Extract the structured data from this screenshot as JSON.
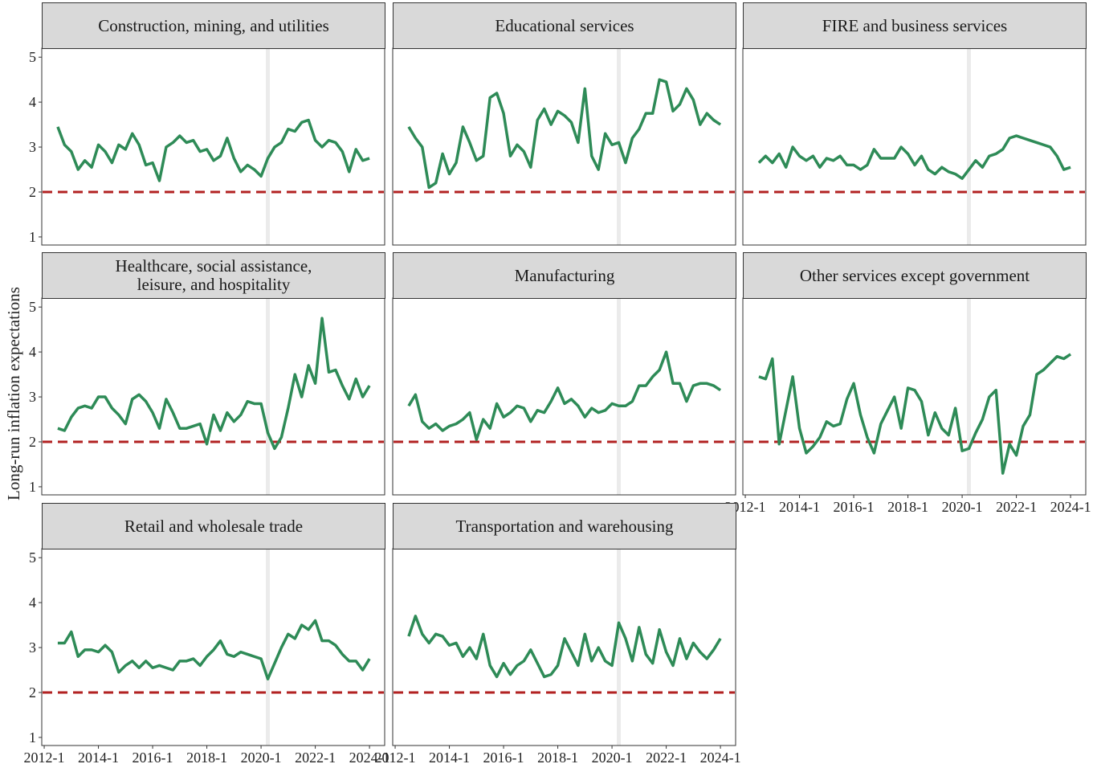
{
  "ylabel": "Long-run inflation expectations",
  "chart_data": [
    {
      "type": "line",
      "title": "Construction, mining, and utilities",
      "color": "#2e8b57",
      "hline": 2,
      "hline_color": "#b22222",
      "vline": 2020.25,
      "vline_color": "#ebebeb",
      "xlim": [
        2011.91,
        2024.56
      ],
      "ylim": [
        0.82,
        5.2
      ],
      "yticks": [
        1,
        2,
        3,
        4,
        5
      ],
      "x": [
        2012.5,
        2012.75,
        2013,
        2013.25,
        2013.5,
        2013.75,
        2014,
        2014.25,
        2014.5,
        2014.75,
        2015,
        2015.25,
        2015.5,
        2015.75,
        2016,
        2016.25,
        2016.5,
        2016.75,
        2017,
        2017.25,
        2017.5,
        2017.75,
        2018,
        2018.25,
        2018.5,
        2018.75,
        2019,
        2019.25,
        2019.5,
        2019.75,
        2020,
        2020.25,
        2020.5,
        2020.75,
        2021,
        2021.25,
        2021.5,
        2021.75,
        2022,
        2022.25,
        2022.5,
        2022.75,
        2023,
        2023.25,
        2023.5,
        2023.75,
        2024
      ],
      "values": [
        3.45,
        3.05,
        2.9,
        2.5,
        2.7,
        2.55,
        3.05,
        2.9,
        2.65,
        3.05,
        2.95,
        3.3,
        3.05,
        2.6,
        2.65,
        2.25,
        3.0,
        3.1,
        3.25,
        3.1,
        3.15,
        2.9,
        2.95,
        2.7,
        2.8,
        3.2,
        2.75,
        2.45,
        2.6,
        2.5,
        2.35,
        2.75,
        3.0,
        3.1,
        3.4,
        3.35,
        3.55,
        3.6,
        3.15,
        3.0,
        3.15,
        3.1,
        2.9,
        2.45,
        2.95,
        2.7,
        2.75
      ]
    },
    {
      "type": "line",
      "title": "Educational services",
      "color": "#2e8b57",
      "hline": 2,
      "hline_color": "#b22222",
      "vline": 2020.25,
      "vline_color": "#ebebeb",
      "xlim": [
        2011.91,
        2024.56
      ],
      "ylim": [
        0.82,
        5.2
      ],
      "x": [
        2012.5,
        2012.75,
        2013,
        2013.25,
        2013.5,
        2013.75,
        2014,
        2014.25,
        2014.5,
        2014.75,
        2015,
        2015.25,
        2015.5,
        2015.75,
        2016,
        2016.25,
        2016.5,
        2016.75,
        2017,
        2017.25,
        2017.5,
        2017.75,
        2018,
        2018.25,
        2018.5,
        2018.75,
        2019,
        2019.25,
        2019.5,
        2019.75,
        2020,
        2020.25,
        2020.5,
        2020.75,
        2021,
        2021.25,
        2021.5,
        2021.75,
        2022,
        2022.25,
        2022.5,
        2022.75,
        2023,
        2023.25,
        2023.5,
        2023.75,
        2024
      ],
      "values": [
        3.45,
        3.2,
        3.0,
        2.1,
        2.2,
        2.85,
        2.4,
        2.65,
        3.45,
        3.1,
        2.7,
        2.8,
        4.1,
        4.2,
        3.75,
        2.8,
        3.05,
        2.9,
        2.55,
        3.6,
        3.85,
        3.5,
        3.8,
        3.7,
        3.55,
        3.1,
        4.3,
        2.8,
        2.5,
        3.3,
        3.05,
        3.1,
        2.65,
        3.2,
        3.4,
        3.75,
        3.75,
        4.5,
        4.45,
        3.8,
        3.95,
        4.3,
        4.05,
        3.5,
        3.75,
        3.6,
        3.5
      ]
    },
    {
      "type": "line",
      "title": "FIRE and business services",
      "color": "#2e8b57",
      "hline": 2,
      "hline_color": "#b22222",
      "vline": 2020.25,
      "vline_color": "#ebebeb",
      "xlim": [
        2011.91,
        2024.56
      ],
      "ylim": [
        0.82,
        5.2
      ],
      "x": [
        2012.5,
        2012.75,
        2013,
        2013.25,
        2013.5,
        2013.75,
        2014,
        2014.25,
        2014.5,
        2014.75,
        2015,
        2015.25,
        2015.5,
        2015.75,
        2016,
        2016.25,
        2016.5,
        2016.75,
        2017,
        2017.25,
        2017.5,
        2017.75,
        2018,
        2018.25,
        2018.5,
        2018.75,
        2019,
        2019.25,
        2019.5,
        2019.75,
        2020,
        2020.25,
        2020.5,
        2020.75,
        2021,
        2021.25,
        2021.5,
        2021.75,
        2022,
        2022.25,
        2022.5,
        2022.75,
        2023,
        2023.25,
        2023.5,
        2023.75,
        2024
      ],
      "values": [
        2.65,
        2.8,
        2.65,
        2.85,
        2.55,
        3.0,
        2.8,
        2.7,
        2.8,
        2.55,
        2.75,
        2.7,
        2.8,
        2.6,
        2.6,
        2.5,
        2.6,
        2.95,
        2.75,
        2.75,
        2.75,
        3.0,
        2.85,
        2.6,
        2.8,
        2.5,
        2.4,
        2.55,
        2.45,
        2.4,
        2.3,
        2.5,
        2.7,
        2.55,
        2.8,
        2.85,
        2.95,
        3.2,
        3.25,
        3.2,
        3.15,
        3.1,
        3.05,
        3.0,
        2.8,
        2.5,
        2.55
      ]
    },
    {
      "type": "line",
      "title": "Healthcare, social assistance,\nleisure, and hospitality",
      "color": "#2e8b57",
      "hline": 2,
      "hline_color": "#b22222",
      "vline": 2020.25,
      "vline_color": "#ebebeb",
      "xlim": [
        2011.91,
        2024.56
      ],
      "ylim": [
        0.82,
        5.2
      ],
      "yticks": [
        1,
        2,
        3,
        4,
        5
      ],
      "x": [
        2012.5,
        2012.75,
        2013,
        2013.25,
        2013.5,
        2013.75,
        2014,
        2014.25,
        2014.5,
        2014.75,
        2015,
        2015.25,
        2015.5,
        2015.75,
        2016,
        2016.25,
        2016.5,
        2016.75,
        2017,
        2017.25,
        2017.5,
        2017.75,
        2018,
        2018.25,
        2018.5,
        2018.75,
        2019,
        2019.25,
        2019.5,
        2019.75,
        2020,
        2020.25,
        2020.5,
        2020.75,
        2021,
        2021.25,
        2021.5,
        2021.75,
        2022,
        2022.25,
        2022.5,
        2022.75,
        2023,
        2023.25,
        2023.5,
        2023.75,
        2024
      ],
      "values": [
        2.3,
        2.25,
        2.55,
        2.75,
        2.8,
        2.75,
        3.0,
        3.0,
        2.75,
        2.6,
        2.4,
        2.95,
        3.05,
        2.9,
        2.65,
        2.3,
        2.95,
        2.65,
        2.3,
        2.3,
        2.35,
        2.4,
        1.95,
        2.6,
        2.25,
        2.65,
        2.45,
        2.6,
        2.9,
        2.85,
        2.85,
        2.2,
        1.85,
        2.1,
        2.75,
        3.5,
        3.0,
        3.7,
        3.3,
        4.75,
        3.55,
        3.6,
        3.25,
        2.95,
        3.4,
        3.0,
        3.25
      ]
    },
    {
      "type": "line",
      "title": "Manufacturing",
      "color": "#2e8b57",
      "hline": 2,
      "hline_color": "#b22222",
      "vline": 2020.25,
      "vline_color": "#ebebeb",
      "xlim": [
        2011.91,
        2024.56
      ],
      "ylim": [
        0.82,
        5.2
      ],
      "x": [
        2012.5,
        2012.75,
        2013,
        2013.25,
        2013.5,
        2013.75,
        2014,
        2014.25,
        2014.5,
        2014.75,
        2015,
        2015.25,
        2015.5,
        2015.75,
        2016,
        2016.25,
        2016.5,
        2016.75,
        2017,
        2017.25,
        2017.5,
        2017.75,
        2018,
        2018.25,
        2018.5,
        2018.75,
        2019,
        2019.25,
        2019.5,
        2019.75,
        2020,
        2020.25,
        2020.5,
        2020.75,
        2021,
        2021.25,
        2021.5,
        2021.75,
        2022,
        2022.25,
        2022.5,
        2022.75,
        2023,
        2023.25,
        2023.5,
        2023.75,
        2024
      ],
      "values": [
        2.8,
        3.05,
        2.45,
        2.3,
        2.4,
        2.25,
        2.35,
        2.4,
        2.5,
        2.65,
        2.05,
        2.5,
        2.3,
        2.85,
        2.55,
        2.65,
        2.8,
        2.75,
        2.45,
        2.7,
        2.65,
        2.9,
        3.2,
        2.85,
        2.95,
        2.8,
        2.55,
        2.75,
        2.65,
        2.7,
        2.85,
        2.8,
        2.8,
        2.9,
        3.25,
        3.25,
        3.45,
        3.6,
        4.0,
        3.3,
        3.3,
        2.9,
        3.25,
        3.3,
        3.3,
        3.25,
        3.15
      ]
    },
    {
      "type": "line",
      "title": "Other services except government",
      "color": "#2e8b57",
      "hline": 2,
      "hline_color": "#b22222",
      "vline": 2020.25,
      "vline_color": "#ebebeb",
      "xlim": [
        2011.91,
        2024.56
      ],
      "ylim": [
        0.82,
        5.2
      ],
      "xticks": [
        {
          "value": 2012,
          "label": "2012-1"
        },
        {
          "value": 2014,
          "label": "2014-1"
        },
        {
          "value": 2016,
          "label": "2016-1"
        },
        {
          "value": 2018,
          "label": "2018-1"
        },
        {
          "value": 2020,
          "label": "2020-1"
        },
        {
          "value": 2022,
          "label": "2022-1"
        },
        {
          "value": 2024,
          "label": "2024-1"
        }
      ],
      "x": [
        2012.5,
        2012.75,
        2013,
        2013.25,
        2013.5,
        2013.75,
        2014,
        2014.25,
        2014.5,
        2014.75,
        2015,
        2015.25,
        2015.5,
        2015.75,
        2016,
        2016.25,
        2016.5,
        2016.75,
        2017,
        2017.25,
        2017.5,
        2017.75,
        2018,
        2018.25,
        2018.5,
        2018.75,
        2019,
        2019.25,
        2019.5,
        2019.75,
        2020,
        2020.25,
        2020.5,
        2020.75,
        2021,
        2021.25,
        2021.5,
        2021.75,
        2022,
        2022.25,
        2022.5,
        2022.75,
        2023,
        2023.25,
        2023.5,
        2023.75,
        2024
      ],
      "values": [
        3.45,
        3.4,
        3.85,
        1.95,
        2.7,
        3.45,
        2.3,
        1.75,
        1.9,
        2.1,
        2.45,
        2.35,
        2.4,
        2.95,
        3.3,
        2.6,
        2.1,
        1.75,
        2.4,
        2.7,
        3.0,
        2.3,
        3.2,
        3.15,
        2.9,
        2.15,
        2.65,
        2.3,
        2.15,
        2.75,
        1.8,
        1.85,
        2.2,
        2.5,
        3.0,
        3.15,
        1.3,
        1.95,
        1.7,
        2.35,
        2.6,
        3.5,
        3.6,
        3.75,
        3.9,
        3.85,
        3.95
      ]
    },
    {
      "type": "line",
      "title": "Retail and wholesale trade",
      "color": "#2e8b57",
      "hline": 2,
      "hline_color": "#b22222",
      "vline": 2020.25,
      "vline_color": "#ebebeb",
      "xlim": [
        2011.91,
        2024.56
      ],
      "ylim": [
        0.82,
        5.2
      ],
      "yticks": [
        1,
        2,
        3,
        4,
        5
      ],
      "xticks": [
        {
          "value": 2012,
          "label": "2012-1"
        },
        {
          "value": 2014,
          "label": "2014-1"
        },
        {
          "value": 2016,
          "label": "2016-1"
        },
        {
          "value": 2018,
          "label": "2018-1"
        },
        {
          "value": 2020,
          "label": "2020-1"
        },
        {
          "value": 2022,
          "label": "2022-1"
        },
        {
          "value": 2024,
          "label": "2024-1"
        }
      ],
      "x": [
        2012.5,
        2012.75,
        2013,
        2013.25,
        2013.5,
        2013.75,
        2014,
        2014.25,
        2014.5,
        2014.75,
        2015,
        2015.25,
        2015.5,
        2015.75,
        2016,
        2016.25,
        2016.5,
        2016.75,
        2017,
        2017.25,
        2017.5,
        2017.75,
        2018,
        2018.25,
        2018.5,
        2018.75,
        2019,
        2019.25,
        2019.5,
        2019.75,
        2020,
        2020.25,
        2020.5,
        2020.75,
        2021,
        2021.25,
        2021.5,
        2021.75,
        2022,
        2022.25,
        2022.5,
        2022.75,
        2023,
        2023.25,
        2023.5,
        2023.75,
        2024
      ],
      "values": [
        3.1,
        3.1,
        3.35,
        2.8,
        2.95,
        2.95,
        2.9,
        3.05,
        2.9,
        2.45,
        2.6,
        2.7,
        2.55,
        2.7,
        2.55,
        2.6,
        2.55,
        2.5,
        2.7,
        2.7,
        2.75,
        2.6,
        2.8,
        2.95,
        3.15,
        2.85,
        2.8,
        2.9,
        2.85,
        2.8,
        2.75,
        2.3,
        2.65,
        3.0,
        3.3,
        3.2,
        3.5,
        3.4,
        3.6,
        3.15,
        3.15,
        3.05,
        2.85,
        2.7,
        2.7,
        2.5,
        2.75
      ]
    },
    {
      "type": "line",
      "title": "Transportation and warehousing",
      "color": "#2e8b57",
      "hline": 2,
      "hline_color": "#b22222",
      "vline": 2020.25,
      "vline_color": "#ebebeb",
      "xlim": [
        2011.91,
        2024.56
      ],
      "ylim": [
        0.82,
        5.2
      ],
      "xticks": [
        {
          "value": 2012,
          "label": "2012-1"
        },
        {
          "value": 2014,
          "label": "2014-1"
        },
        {
          "value": 2016,
          "label": "2016-1"
        },
        {
          "value": 2018,
          "label": "2018-1"
        },
        {
          "value": 2020,
          "label": "2020-1"
        },
        {
          "value": 2022,
          "label": "2022-1"
        },
        {
          "value": 2024,
          "label": "2024-1"
        }
      ],
      "x": [
        2012.5,
        2012.75,
        2013,
        2013.25,
        2013.5,
        2013.75,
        2014,
        2014.25,
        2014.5,
        2014.75,
        2015,
        2015.25,
        2015.5,
        2015.75,
        2016,
        2016.25,
        2016.5,
        2016.75,
        2017,
        2017.25,
        2017.5,
        2017.75,
        2018,
        2018.25,
        2018.5,
        2018.75,
        2019,
        2019.25,
        2019.5,
        2019.75,
        2020,
        2020.25,
        2020.5,
        2020.75,
        2021,
        2021.25,
        2021.5,
        2021.75,
        2022,
        2022.25,
        2022.5,
        2022.75,
        2023,
        2023.25,
        2023.5,
        2023.75,
        2024
      ],
      "values": [
        3.25,
        3.7,
        3.3,
        3.1,
        3.3,
        3.25,
        3.05,
        3.1,
        2.8,
        3.0,
        2.75,
        3.3,
        2.6,
        2.35,
        2.65,
        2.4,
        2.6,
        2.7,
        2.95,
        2.65,
        2.35,
        2.4,
        2.6,
        3.2,
        2.9,
        2.6,
        3.3,
        2.7,
        3.0,
        2.7,
        2.6,
        3.55,
        3.2,
        2.7,
        3.45,
        2.85,
        2.65,
        3.4,
        2.9,
        2.6,
        3.2,
        2.75,
        3.1,
        2.9,
        2.75,
        2.95,
        3.2
      ]
    }
  ]
}
